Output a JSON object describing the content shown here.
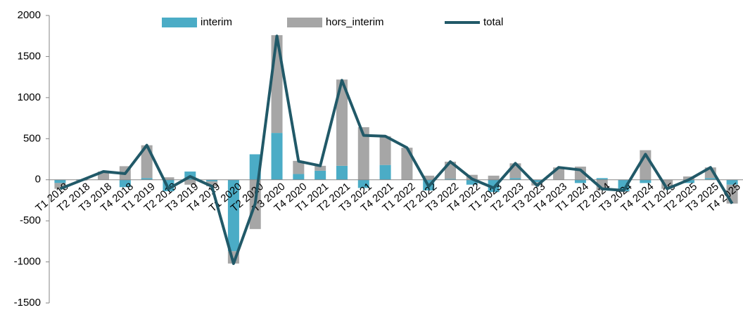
{
  "chart_data": {
    "type": "bar-line",
    "categories": [
      "T1 2018",
      "T2 2018",
      "T3 2018",
      "T4 2018",
      "T1 2019",
      "T2 2019",
      "T3 2019",
      "T4 2019",
      "T1 2020",
      "T2 2020",
      "T3 2020",
      "T4 2020",
      "T1 2021",
      "T2 2021",
      "T3 2021",
      "T4 2021",
      "T1 2022",
      "T2 2022",
      "T3 2022",
      "T4 2022",
      "T1 2023",
      "T2 2023",
      "T3 2023",
      "T4 2023",
      "T1 2024",
      "T2 2024",
      "T3 2024",
      "T4 2024",
      "T1 2025",
      "T2 2025",
      "T3 2025",
      "T4 2025"
    ],
    "series": [
      {
        "name": "interim",
        "type": "bar",
        "color": "#4bacc6",
        "values": [
          -40,
          5,
          0,
          -90,
          20,
          -140,
          100,
          -20,
          -870,
          310,
          570,
          70,
          110,
          170,
          -100,
          180,
          0,
          -130,
          10,
          -60,
          -150,
          20,
          -30,
          0,
          -40,
          20,
          -140,
          -40,
          0,
          -40,
          20,
          -60
        ]
      },
      {
        "name": "hors_interim",
        "type": "bar",
        "color": "#a6a6a6",
        "values": [
          -70,
          -10,
          100,
          165,
          400,
          30,
          -60,
          -60,
          -150,
          -600,
          1190,
          160,
          60,
          1050,
          640,
          350,
          390,
          50,
          210,
          60,
          50,
          180,
          -40,
          150,
          160,
          -130,
          -10,
          360,
          -110,
          40,
          130,
          -230
        ]
      },
      {
        "name": "total",
        "type": "line",
        "color": "#215968",
        "values": [
          -110,
          -5,
          100,
          75,
          420,
          -110,
          40,
          -80,
          -1020,
          -290,
          1750,
          225,
          170,
          1210,
          540,
          530,
          390,
          -80,
          220,
          10,
          -100,
          200,
          -70,
          150,
          120,
          -110,
          -130,
          310,
          -110,
          0,
          150,
          -290
        ]
      }
    ],
    "ylim": [
      -1500,
      2000
    ],
    "yticks": [
      -1500,
      -1000,
      -500,
      0,
      500,
      1000,
      1500,
      2000
    ],
    "grid": false
  }
}
